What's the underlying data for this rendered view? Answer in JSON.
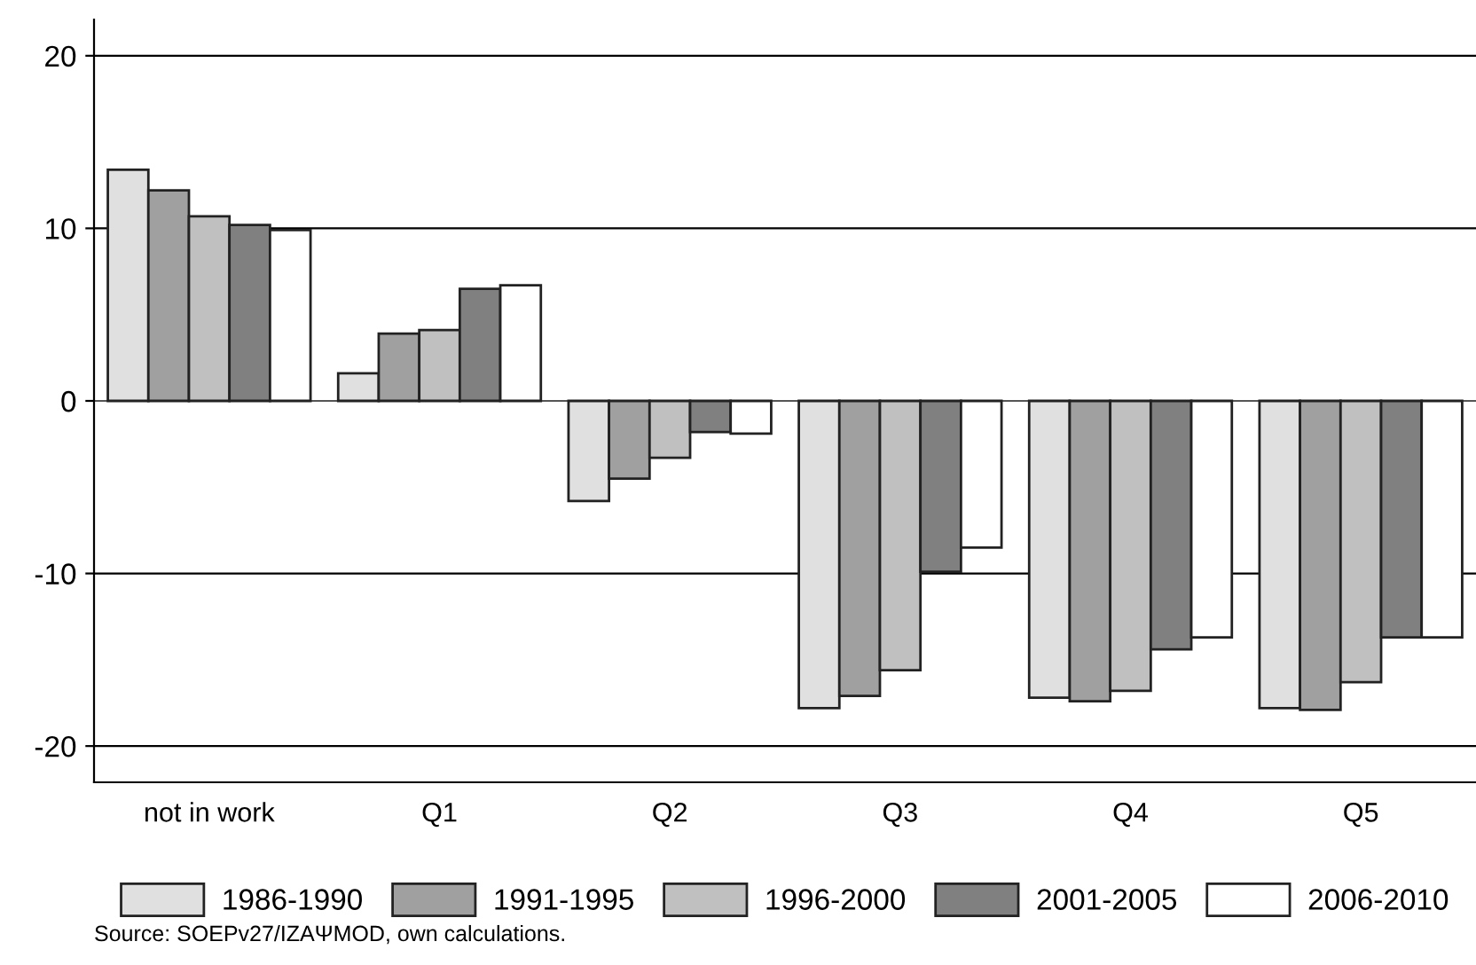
{
  "chart_data": {
    "type": "bar",
    "categories": [
      "not in work",
      "Q1",
      "Q2",
      "Q3",
      "Q4",
      "Q5"
    ],
    "series": [
      {
        "name": "1986-1990",
        "color": "#e0e0e0",
        "values": [
          13.4,
          1.6,
          -5.8,
          -17.8,
          -17.2,
          -17.8
        ]
      },
      {
        "name": "1991-1995",
        "color": "#a0a0a0",
        "values": [
          12.2,
          3.9,
          -4.5,
          -17.1,
          -17.4,
          -17.9
        ]
      },
      {
        "name": "1996-2000",
        "color": "#c0c0c0",
        "values": [
          10.7,
          4.1,
          -3.3,
          -15.6,
          -16.8,
          -16.3
        ]
      },
      {
        "name": "2001-2005",
        "color": "#808080",
        "values": [
          10.2,
          6.5,
          -1.8,
          -9.9,
          -14.4,
          -13.7
        ]
      },
      {
        "name": "2006-2010",
        "color": "#ffffff",
        "values": [
          9.9,
          6.7,
          -1.9,
          -8.5,
          -13.7,
          -13.7
        ]
      }
    ],
    "ylim": [
      -22.1,
      22.1
    ],
    "yticks": [
      -20,
      -10,
      0,
      10,
      20
    ],
    "grid": "y",
    "legend": "bottom",
    "annotations": [
      "Source: SOEPv27/IZAΨMOD, own calculations."
    ]
  }
}
